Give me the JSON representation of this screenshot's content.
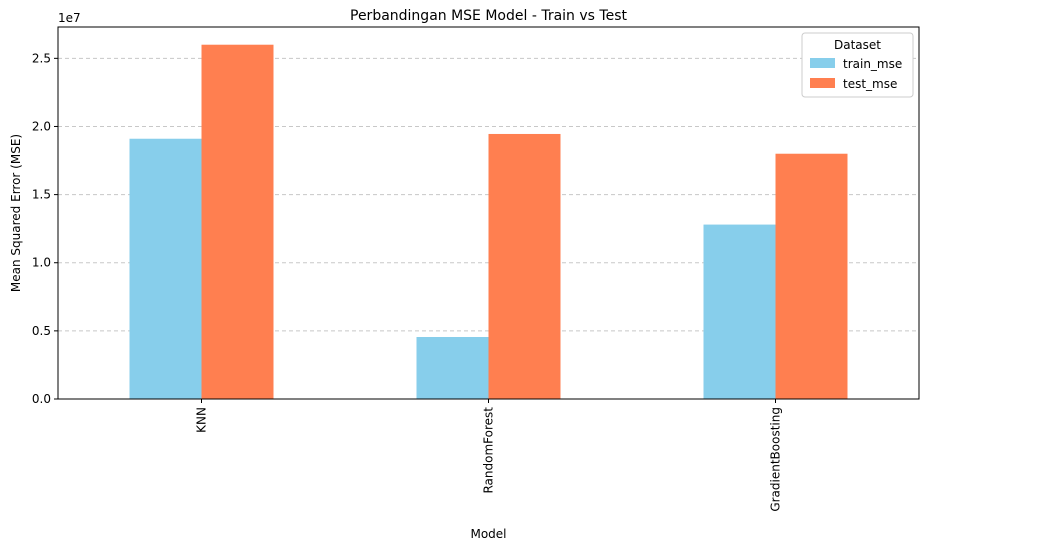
{
  "chart_data": {
    "type": "bar",
    "title": "Perbandingan MSE Model - Train vs Test",
    "xlabel": "Model",
    "ylabel": "Mean Squared Error (MSE)",
    "y_offset_label": "1e7",
    "categories": [
      "KNN",
      "RandomForest",
      "GradientBoosting"
    ],
    "series": [
      {
        "name": "train_mse",
        "color": "#87ceeb",
        "values": [
          19100000,
          4550000,
          12800000
        ]
      },
      {
        "name": "test_mse",
        "color": "#ff7f50",
        "values": [
          26000000,
          19450000,
          18000000
        ]
      }
    ],
    "ylim": [
      0,
      27300000
    ],
    "yticks": [
      0,
      5000000,
      10000000,
      15000000,
      20000000,
      25000000
    ],
    "ytick_labels": [
      "0.0",
      "0.5",
      "1.0",
      "1.5",
      "2.0",
      "2.5"
    ],
    "grid": "y-dashed",
    "legend": {
      "title": "Dataset",
      "placement": "top-right"
    }
  }
}
